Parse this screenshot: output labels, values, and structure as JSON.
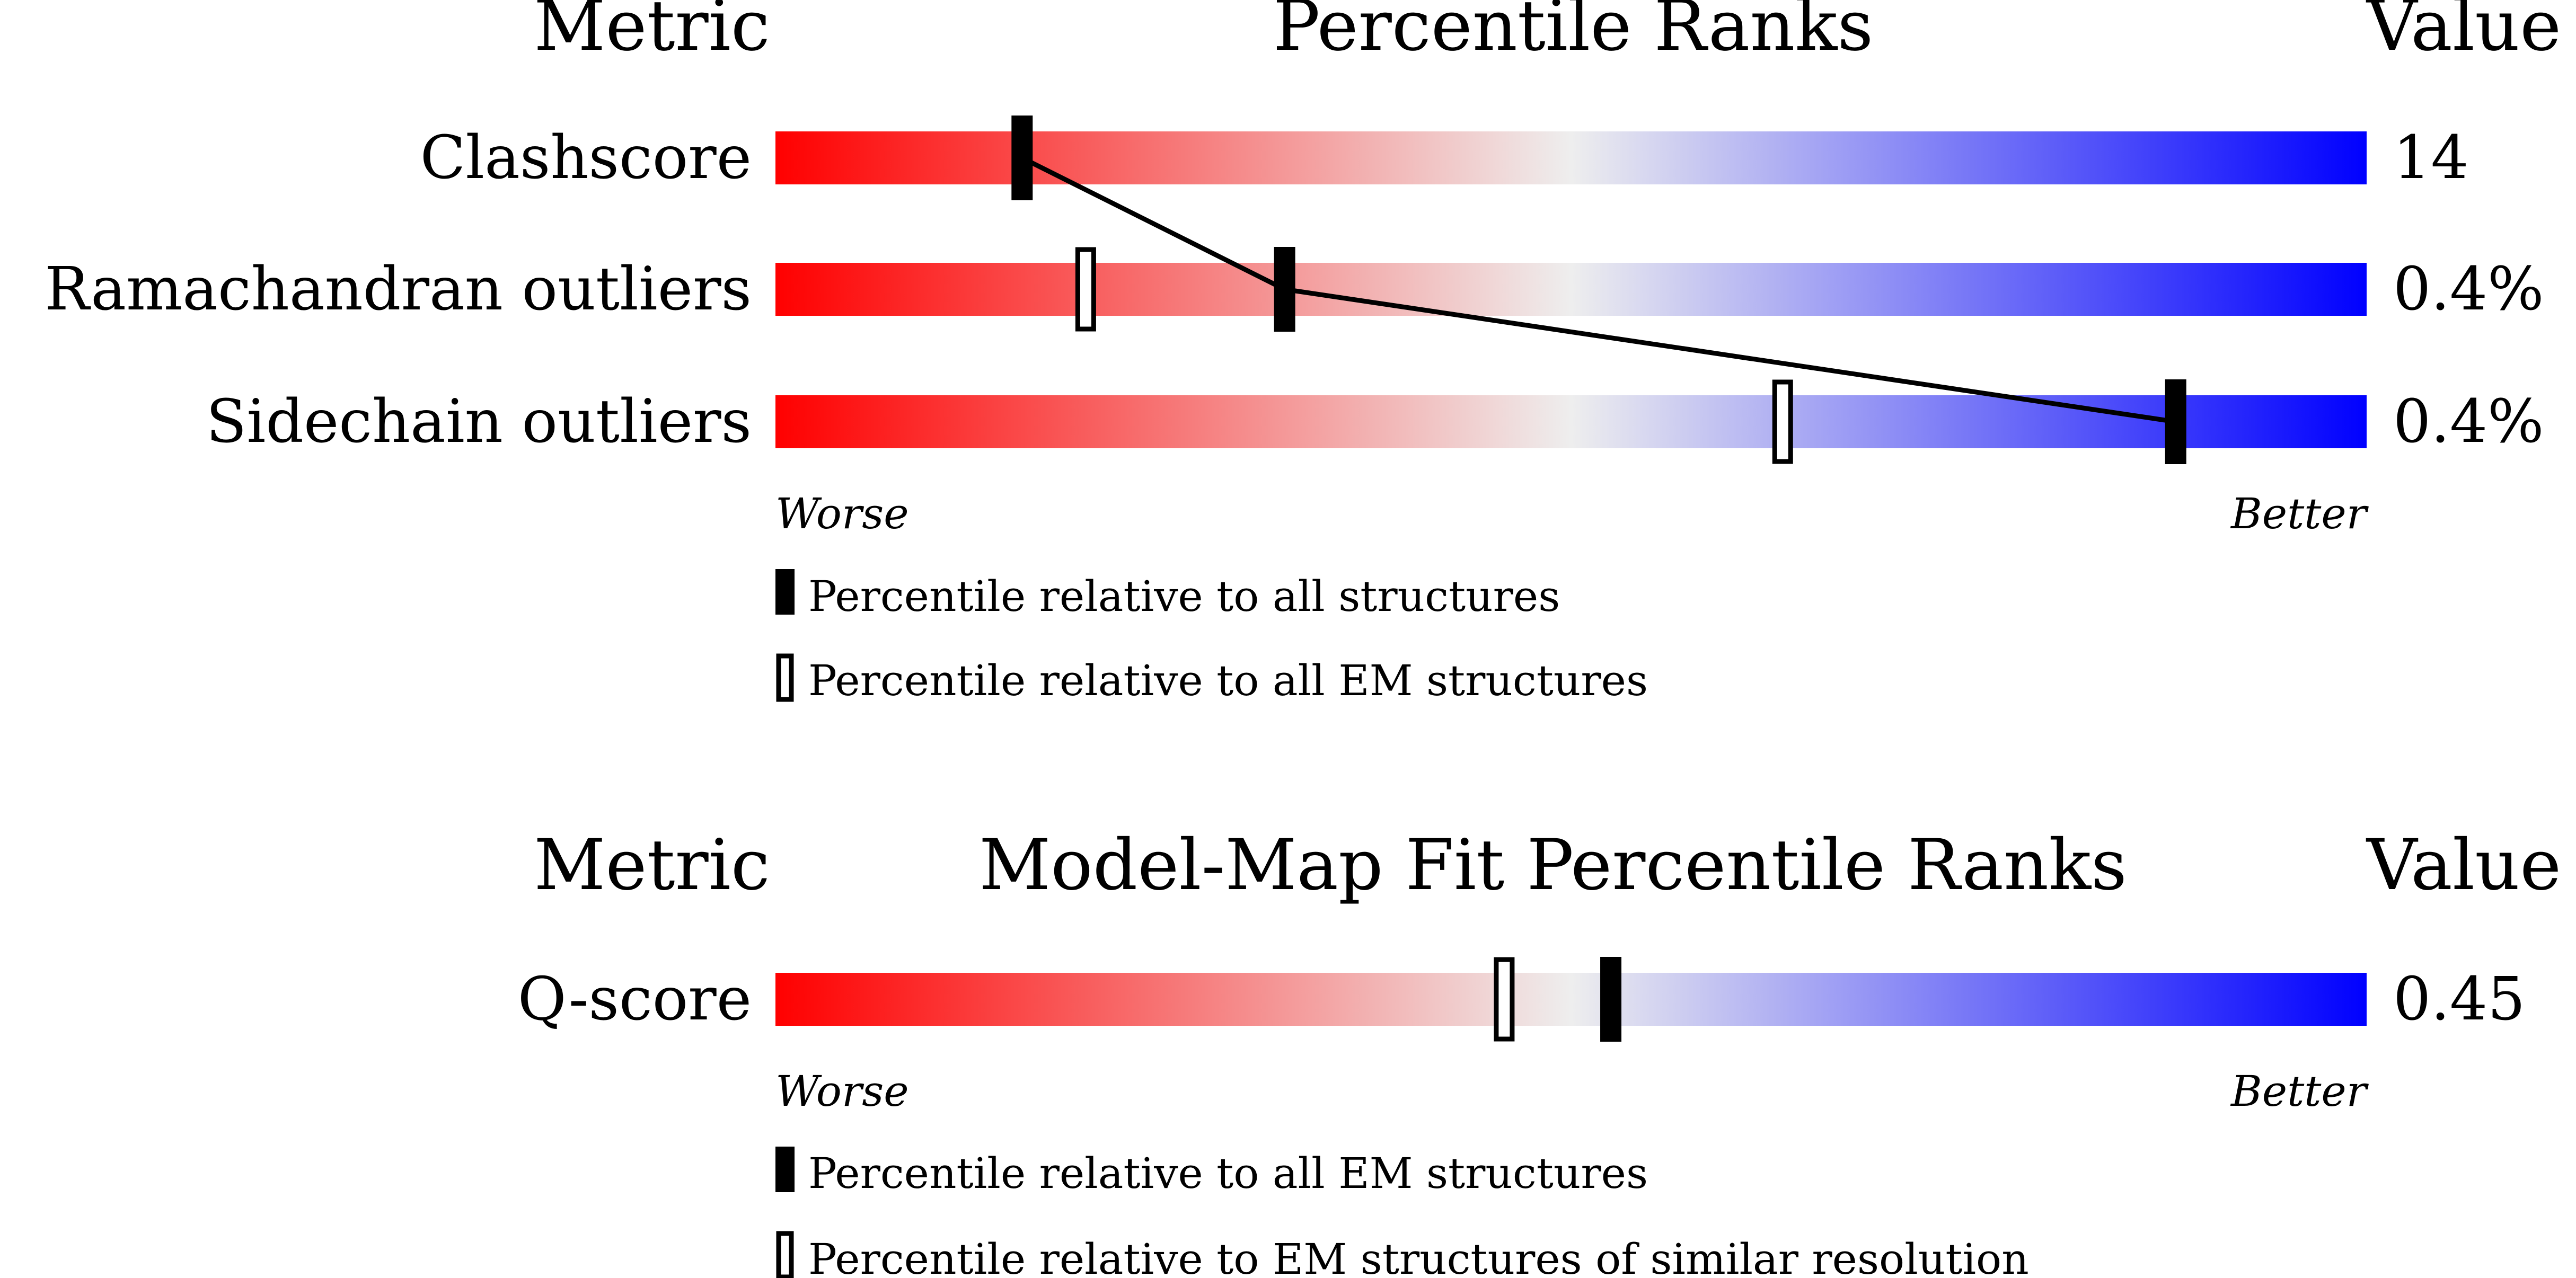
{
  "colors": {
    "worse": "#ff0000",
    "neutral": "#eeeeee",
    "better": "#0000ff",
    "marker": "#000000",
    "background": "#ffffff"
  },
  "chart_data": [
    {
      "type": "bar",
      "headers": {
        "metric": "Metric",
        "title": "Percentile Ranks",
        "value": "Value"
      },
      "xlim": [
        0,
        100
      ],
      "axis_labels": {
        "left": "Worse",
        "right": "Better"
      },
      "series": [
        {
          "marker": "filled",
          "name": "Percentile relative to all structures"
        },
        {
          "marker": "open",
          "name": "Percentile relative to all EM structures"
        }
      ],
      "rows": [
        {
          "metric": "Clashscore",
          "value": "14",
          "percentiles": [
            15.5,
            null
          ]
        },
        {
          "metric": "Ramachandran outliers",
          "value": "0.4%",
          "percentiles": [
            32,
            19.5
          ]
        },
        {
          "metric": "Sidechain outliers",
          "value": "0.4%",
          "percentiles": [
            88,
            63.3
          ]
        }
      ],
      "connect_series": 0
    },
    {
      "type": "bar",
      "headers": {
        "metric": "Metric",
        "title": "Model-Map Fit Percentile Ranks",
        "value": "Value"
      },
      "xlim": [
        0,
        100
      ],
      "axis_labels": {
        "left": "Worse",
        "right": "Better"
      },
      "series": [
        {
          "marker": "filled",
          "name": "Percentile relative to all EM structures"
        },
        {
          "marker": "open",
          "name": "Percentile relative to EM structures of similar resolution"
        }
      ],
      "rows": [
        {
          "metric": "Q-score",
          "value": "0.45",
          "percentiles": [
            52.5,
            45.8
          ]
        }
      ],
      "connect_series": null
    }
  ]
}
